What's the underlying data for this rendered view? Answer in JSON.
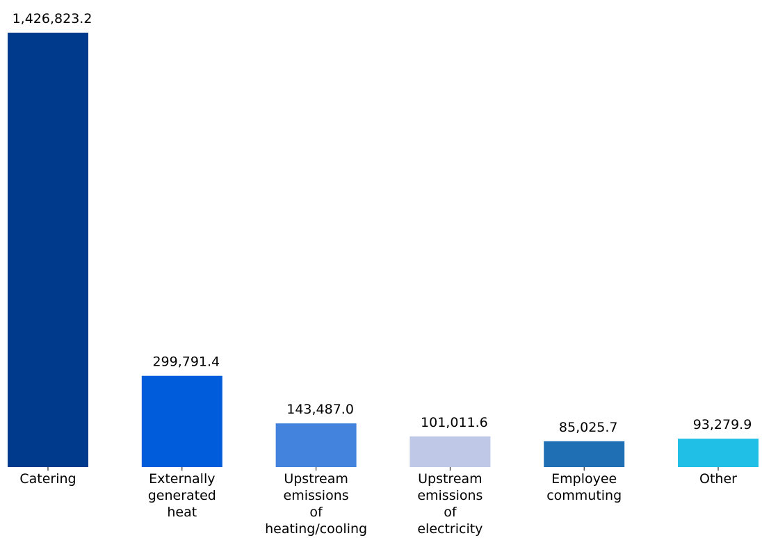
{
  "chart_data": {
    "type": "bar",
    "title": "",
    "xlabel": "",
    "ylabel": "",
    "ylim": [
      0,
      1426823.2
    ],
    "grid": false,
    "legend": "none",
    "categories": [
      [
        "Catering"
      ],
      [
        "Externally",
        "generated",
        "heat"
      ],
      [
        "Upstream",
        "emissions",
        "of",
        "heating/cooling"
      ],
      [
        "Upstream",
        "emissions",
        "of",
        "electricity"
      ],
      [
        "Employee",
        "commuting"
      ],
      [
        "Other"
      ]
    ],
    "values": [
      1426823.2,
      299791.4,
      143487.0,
      101011.6,
      85025.7,
      93279.9
    ],
    "data_labels": [
      "1,426,823.2",
      "299,791.4",
      "143,487.0",
      "101,011.6",
      "85,025.7",
      "93,279.9"
    ],
    "colors": [
      "#003A8C",
      "#005CDB",
      "#4383DD",
      "#BFC8E7",
      "#1F6FB4",
      "#20C0E6"
    ]
  }
}
